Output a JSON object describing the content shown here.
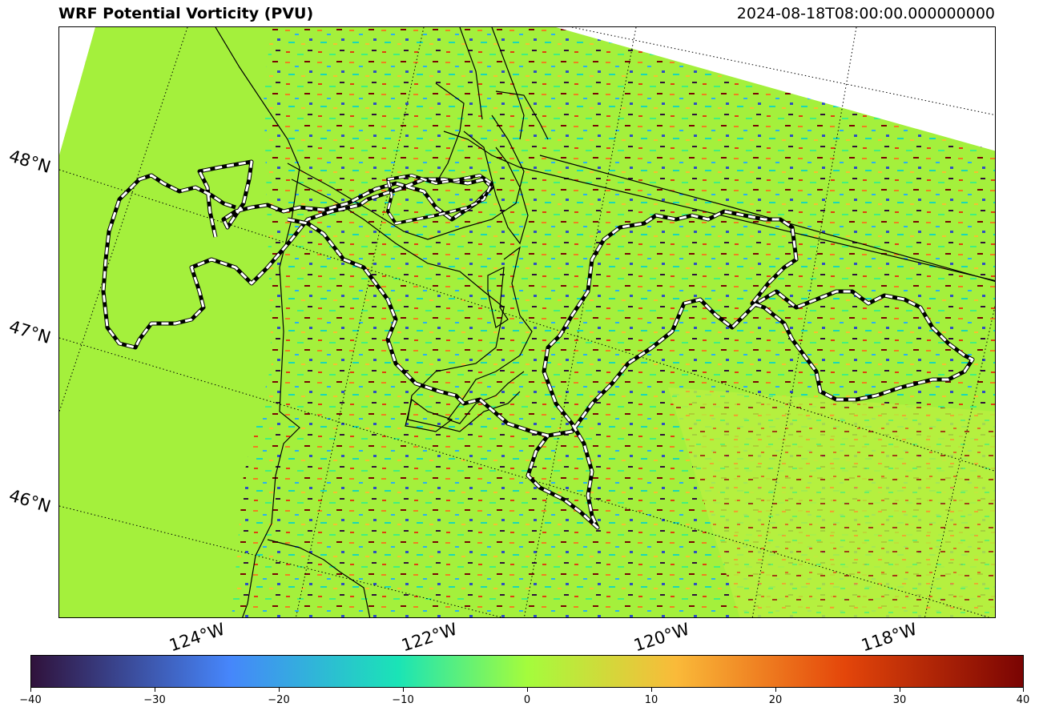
{
  "header": {
    "title": "WRF Potential Vorticity (PVU)",
    "timestamp": "2024-08-18T08:00:00.000000000"
  },
  "map": {
    "lat_labels": [
      "48°N",
      "47°N",
      "46°N"
    ],
    "lon_labels": [
      "124°W",
      "122°W",
      "120°W",
      "118°W"
    ],
    "colormap": "turbo",
    "background_value_color": "#a4f03c",
    "coastline_color": "#000000",
    "boundary_outline": "white dashed with black",
    "gridline_style": "dotted"
  },
  "colorbar": {
    "min": -40,
    "max": 40,
    "tick_labels": [
      "−40",
      "−30",
      "−20",
      "−10",
      "0",
      "10",
      "20",
      "30",
      "40"
    ],
    "colors": [
      "#30123b",
      "#4686fb",
      "#1ae4b6",
      "#a4fc3c",
      "#faba39",
      "#e4460a",
      "#7a0403"
    ]
  }
}
